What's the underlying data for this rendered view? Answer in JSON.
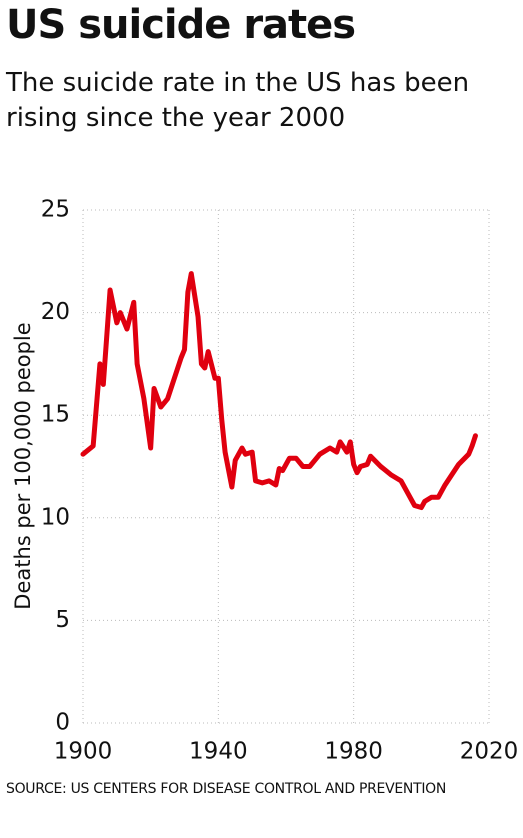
{
  "chart_data": {
    "type": "line",
    "title": "US suicide rates",
    "subtitle": "The suicide rate in the US has been rising since the year 2000",
    "source": "SOURCE: US CENTERS FOR DISEASE CONTROL AND PREVENTION",
    "y_label": "Deaths per 100,000 people",
    "x": [
      1900,
      1903,
      1905,
      1906,
      1908,
      1910,
      1911,
      1913,
      1915,
      1916,
      1918,
      1920,
      1921,
      1923,
      1925,
      1929,
      1930,
      1931,
      1932,
      1934,
      1935,
      1936,
      1937,
      1939,
      1940,
      1941,
      1942,
      1944,
      1945,
      1947,
      1948,
      1950,
      1951,
      1953,
      1955,
      1957,
      1958,
      1959,
      1961,
      1963,
      1965,
      1967,
      1970,
      1973,
      1975,
      1976,
      1978,
      1979,
      1980,
      1981,
      1982,
      1984,
      1985,
      1988,
      1991,
      1994,
      1996,
      1998,
      2000,
      2001,
      2003,
      2005,
      2007,
      2009,
      2011,
      2014,
      2015,
      2016
    ],
    "series": [
      {
        "name": "Suicide rate",
        "color": "#e0000f",
        "values": [
          13.1,
          13.5,
          17.5,
          16.5,
          21.1,
          19.5,
          20.0,
          19.2,
          20.5,
          17.5,
          15.8,
          13.4,
          16.3,
          15.4,
          15.8,
          17.8,
          18.2,
          21.0,
          21.9,
          19.8,
          17.5,
          17.3,
          18.1,
          16.8,
          16.8,
          14.8,
          13.2,
          11.5,
          12.8,
          13.4,
          13.1,
          13.2,
          11.8,
          11.7,
          11.8,
          11.6,
          12.4,
          12.3,
          12.9,
          12.9,
          12.5,
          12.5,
          13.1,
          13.4,
          13.2,
          13.7,
          13.2,
          13.7,
          12.6,
          12.2,
          12.5,
          12.6,
          13.0,
          12.5,
          12.1,
          11.8,
          11.2,
          10.6,
          10.5,
          10.8,
          11.0,
          11.0,
          11.6,
          12.1,
          12.6,
          13.1,
          13.5,
          14.0
        ]
      }
    ],
    "xlim": [
      1900,
      2020
    ],
    "xticks": [
      1900,
      1940,
      1980,
      2020
    ],
    "ylim": [
      0,
      25
    ],
    "yticks": [
      0,
      5,
      10,
      15,
      20,
      25
    ],
    "grid": true
  }
}
